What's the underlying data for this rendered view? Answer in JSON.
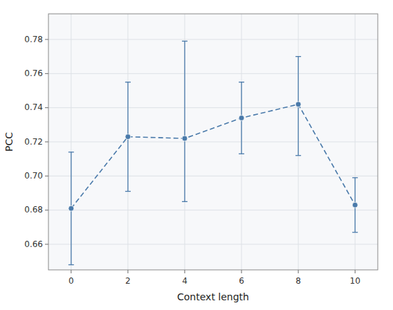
{
  "chart_data": {
    "type": "line",
    "xlabel": "Context length",
    "ylabel": "PCC",
    "x": [
      0,
      2,
      4,
      6,
      8,
      10
    ],
    "values": [
      0.681,
      0.723,
      0.722,
      0.734,
      0.742,
      0.683
    ],
    "error_lower": [
      0.033,
      0.032,
      0.037,
      0.021,
      0.03,
      0.016
    ],
    "error_upper": [
      0.033,
      0.032,
      0.057,
      0.021,
      0.028,
      0.016
    ],
    "color": "#4a7aaa",
    "line_style": "dashed",
    "marker": "circle",
    "xlim": [
      -0.8,
      10.8
    ],
    "ylim": [
      0.645,
      0.795
    ],
    "xticks": [
      0,
      2,
      4,
      6,
      8,
      10
    ],
    "yticks": [
      0.66,
      0.68,
      {
        "value": 0.7,
        "label": "0.70"
      },
      0.72,
      0.74,
      0.76,
      0.78
    ],
    "grid": true
  }
}
